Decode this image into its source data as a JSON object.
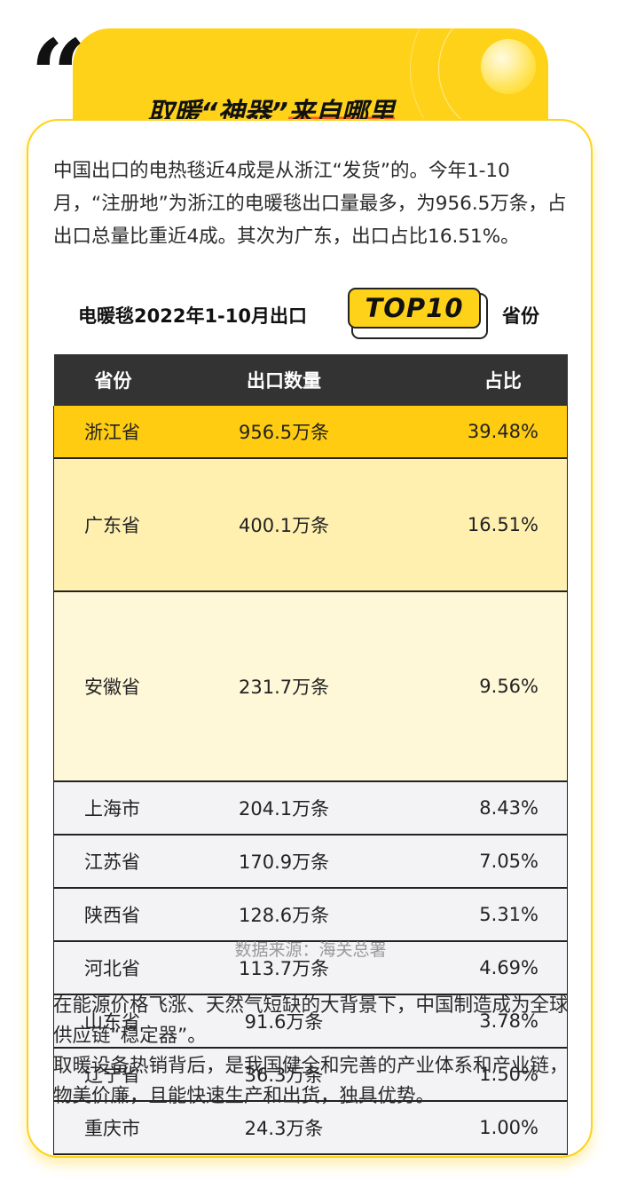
{
  "header": {
    "quote_marks": "“",
    "title_part1": "取暖“神器”",
    "title_part2": "来自哪里"
  },
  "intro": "中国出口的电热毯近4成是从浙江“发货”的。今年1-10月，“注册地”为浙江的电暖毯出口量最多，为956.5万条，占出口总量比重近4成。其次为广东，出口占比16.51%。",
  "table_title": {
    "prefix": "电暖毯2022年1-10月出口",
    "badge": "TOP10",
    "suffix": "省份"
  },
  "table": {
    "headers": [
      "省份",
      "出口数量",
      "占比"
    ],
    "rows": [
      [
        "浙江省",
        "956.5万条",
        "39.48%"
      ],
      [
        "广东省",
        "400.1万条",
        "16.51%"
      ],
      [
        "安徽省",
        "231.7万条",
        "9.56%"
      ],
      [
        "上海市",
        "204.1万条",
        "8.43%"
      ],
      [
        "江苏省",
        "170.9万条",
        "7.05%"
      ],
      [
        "陕西省",
        "128.6万条",
        "5.31%"
      ],
      [
        "河北省",
        "113.7万条",
        "4.69%"
      ],
      [
        "山东省",
        "91.6万条",
        "3.78%"
      ],
      [
        "辽宁省",
        "36.3万条",
        "1.50%"
      ],
      [
        "重庆市",
        "24.3万条",
        "1.00%"
      ]
    ]
  },
  "source": "数据来源：海关总署",
  "outro": {
    "line1": "在能源价格飞涨、天然气短缺的大背景下，中国制造成为全球供应链“稳定器”。",
    "line2": "取暖设备热销背后，是我国健全和完善的产业体系和产业链，物美价廉，且能快速生产和出货，独具优势。"
  },
  "colors": {
    "accent_yellow": "#ffd21a",
    "highlight_orange": "#ff5a1f",
    "table_header": "#333333"
  }
}
